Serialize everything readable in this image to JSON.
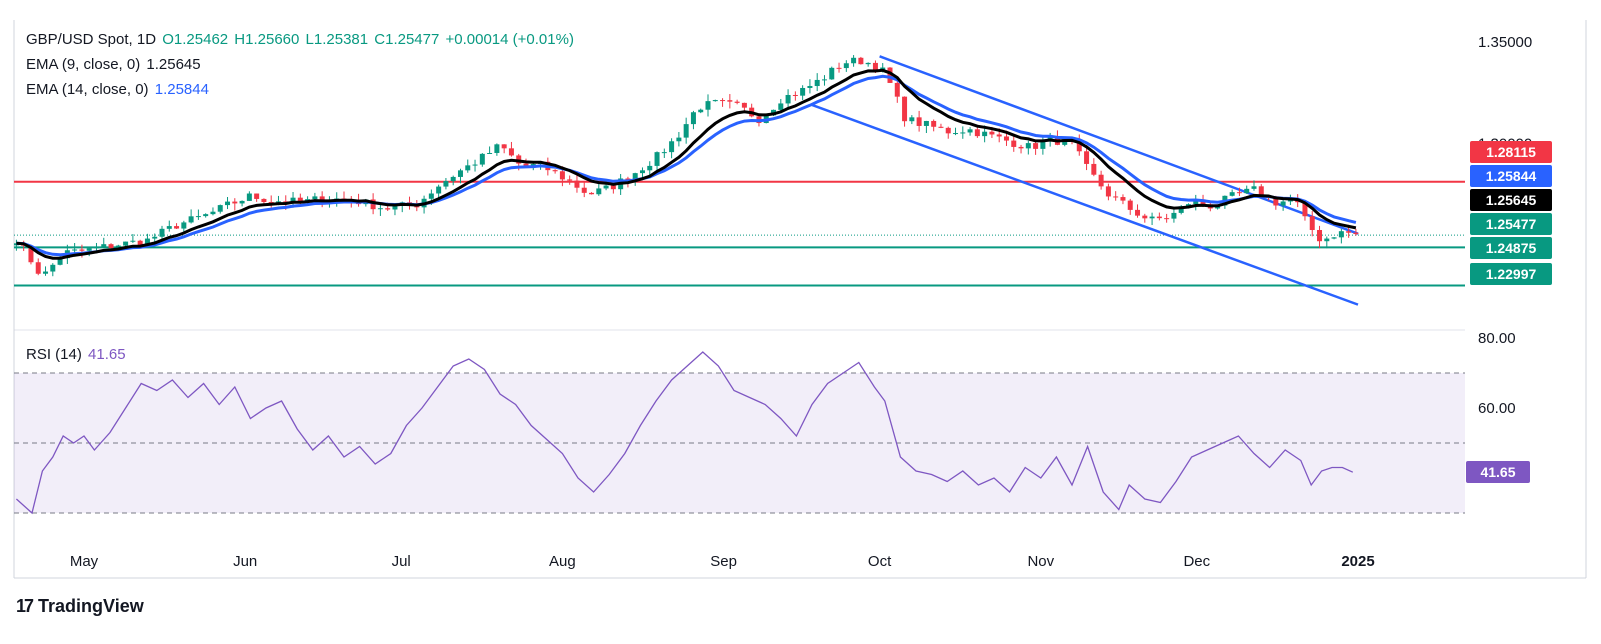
{
  "legend": {
    "symbol": "GBP/USD Spot, 1D",
    "open": "O1.25462",
    "high": "H1.25660",
    "low": "L1.25381",
    "close": "C1.25477",
    "change": "+0.00014 (+0.01%)",
    "ema9_label": "EMA (9, close, 0)",
    "ema9_value": "1.25645",
    "ema14_label": "EMA (14, close, 0)",
    "ema14_value": "1.25844",
    "rsi_label": "RSI (14)",
    "rsi_value": "41.65"
  },
  "branding": {
    "logo": "TradingView"
  },
  "colors": {
    "up": "#089981",
    "down": "#f23645",
    "ema9": "#000000",
    "ema14": "#2962ff",
    "resistance": "#f23645",
    "support": "#089981",
    "channel": "#2962ff",
    "rsi": "#7e57c2"
  },
  "chart_data": [
    {
      "type": "candlestick",
      "ylim": [
        1.207,
        1.355
      ],
      "price_ticks": [
        "1.35000",
        "1.30000"
      ],
      "x_ticks": [
        {
          "label": "May",
          "day": 0
        },
        {
          "label": "Jun",
          "day": 31
        },
        {
          "label": "Jul",
          "day": 61
        },
        {
          "label": "Aug",
          "day": 92
        },
        {
          "label": "Sep",
          "day": 123
        },
        {
          "label": "Oct",
          "day": 153
        },
        {
          "label": "Nov",
          "day": 184
        },
        {
          "label": "Dec",
          "day": 214
        },
        {
          "label": "2025",
          "day": 245
        }
      ],
      "price_labels": [
        {
          "value": "1.28115",
          "color": "#f23645"
        },
        {
          "value": "1.25844",
          "color": "#2962ff"
        },
        {
          "value": "1.25645",
          "color": "#000000"
        },
        {
          "value": "1.25477",
          "color": "#089981"
        },
        {
          "value": "1.24875",
          "color": "#089981"
        },
        {
          "value": "1.22997",
          "color": "#089981"
        }
      ],
      "horizontal_levels": {
        "resistance": 1.28115,
        "support1": 1.24875,
        "support2": 1.22997,
        "last_close": 1.25477
      },
      "ema9_last": 1.25645,
      "ema14_last": 1.25844,
      "channel": {
        "upper": [
          [
            153,
            1.343
          ],
          [
            245,
            1.2555
          ]
        ],
        "lower": [
          [
            140,
            1.319
          ],
          [
            245,
            1.2205
          ]
        ]
      },
      "close_path": [
        [
          -13,
          1.253
        ],
        [
          -8,
          1.234
        ],
        [
          -4,
          1.246
        ],
        [
          0,
          1.247
        ],
        [
          6,
          1.25
        ],
        [
          12,
          1.252
        ],
        [
          18,
          1.26
        ],
        [
          24,
          1.265
        ],
        [
          28,
          1.27
        ],
        [
          32,
          1.274
        ],
        [
          36,
          1.272
        ],
        [
          42,
          1.271
        ],
        [
          46,
          1.273
        ],
        [
          52,
          1.272
        ],
        [
          58,
          1.268
        ],
        [
          64,
          1.27
        ],
        [
          68,
          1.279
        ],
        [
          72,
          1.286
        ],
        [
          76,
          1.292
        ],
        [
          80,
          1.299
        ],
        [
          84,
          1.289
        ],
        [
          88,
          1.289
        ],
        [
          93,
          1.282
        ],
        [
          97,
          1.275
        ],
        [
          101,
          1.278
        ],
        [
          105,
          1.284
        ],
        [
          110,
          1.293
        ],
        [
          114,
          1.303
        ],
        [
          118,
          1.318
        ],
        [
          122,
          1.32
        ],
        [
          126,
          1.318
        ],
        [
          130,
          1.312
        ],
        [
          134,
          1.322
        ],
        [
          138,
          1.326
        ],
        [
          142,
          1.332
        ],
        [
          146,
          1.34
        ],
        [
          150,
          1.341
        ],
        [
          154,
          1.335
        ],
        [
          158,
          1.312
        ],
        [
          162,
          1.309
        ],
        [
          166,
          1.306
        ],
        [
          170,
          1.307
        ],
        [
          174,
          1.304
        ],
        [
          178,
          1.301
        ],
        [
          182,
          1.298
        ],
        [
          186,
          1.302
        ],
        [
          190,
          1.3
        ],
        [
          193,
          1.287
        ],
        [
          197,
          1.275
        ],
        [
          201,
          1.268
        ],
        [
          205,
          1.262
        ],
        [
          209,
          1.264
        ],
        [
          213,
          1.272
        ],
        [
          217,
          1.269
        ],
        [
          221,
          1.274
        ],
        [
          225,
          1.277
        ],
        [
          229,
          1.271
        ],
        [
          233,
          1.272
        ],
        [
          235,
          1.261
        ],
        [
          238,
          1.252
        ],
        [
          241,
          1.256
        ],
        [
          243,
          1.256
        ],
        [
          245,
          1.2548
        ]
      ]
    },
    {
      "type": "line",
      "ylim": [
        20,
        80
      ],
      "y_ticks": [
        "80.00",
        "60.00"
      ],
      "levels": {
        "overbought": 70,
        "middle": 50,
        "oversold": 30
      },
      "last_value": 41.65,
      "values": [
        [
          -13,
          34
        ],
        [
          -10,
          30
        ],
        [
          -8,
          42
        ],
        [
          -6,
          46
        ],
        [
          -4,
          52
        ],
        [
          -2,
          50
        ],
        [
          0,
          52
        ],
        [
          2,
          48
        ],
        [
          5,
          53
        ],
        [
          8,
          60
        ],
        [
          11,
          67
        ],
        [
          14,
          65
        ],
        [
          17,
          68
        ],
        [
          20,
          63
        ],
        [
          23,
          67
        ],
        [
          26,
          61
        ],
        [
          29,
          66
        ],
        [
          32,
          57
        ],
        [
          35,
          60
        ],
        [
          38,
          62
        ],
        [
          41,
          54
        ],
        [
          44,
          48
        ],
        [
          47,
          52
        ],
        [
          50,
          46
        ],
        [
          53,
          49
        ],
        [
          56,
          44
        ],
        [
          59,
          47
        ],
        [
          62,
          55
        ],
        [
          65,
          60
        ],
        [
          68,
          66
        ],
        [
          71,
          72
        ],
        [
          74,
          74
        ],
        [
          77,
          71
        ],
        [
          80,
          64
        ],
        [
          83,
          61
        ],
        [
          86,
          55
        ],
        [
          89,
          51
        ],
        [
          92,
          47
        ],
        [
          95,
          40
        ],
        [
          98,
          36
        ],
        [
          101,
          41
        ],
        [
          104,
          47
        ],
        [
          107,
          55
        ],
        [
          110,
          62
        ],
        [
          113,
          68
        ],
        [
          116,
          72
        ],
        [
          119,
          76
        ],
        [
          122,
          72
        ],
        [
          125,
          65
        ],
        [
          128,
          63
        ],
        [
          131,
          61
        ],
        [
          134,
          57
        ],
        [
          137,
          52
        ],
        [
          140,
          61
        ],
        [
          143,
          67
        ],
        [
          146,
          70
        ],
        [
          149,
          73
        ],
        [
          152,
          66
        ],
        [
          154,
          62
        ],
        [
          157,
          46
        ],
        [
          160,
          42
        ],
        [
          163,
          41
        ],
        [
          166,
          39
        ],
        [
          169,
          42
        ],
        [
          172,
          38
        ],
        [
          175,
          40
        ],
        [
          178,
          36
        ],
        [
          181,
          43
        ],
        [
          184,
          40
        ],
        [
          187,
          46
        ],
        [
          190,
          38
        ],
        [
          193,
          49
        ],
        [
          196,
          36
        ],
        [
          199,
          31
        ],
        [
          201,
          38
        ],
        [
          204,
          34
        ],
        [
          207,
          33
        ],
        [
          210,
          39
        ],
        [
          213,
          46
        ],
        [
          216,
          48
        ],
        [
          219,
          50
        ],
        [
          222,
          52
        ],
        [
          225,
          47
        ],
        [
          228,
          43
        ],
        [
          231,
          48
        ],
        [
          234,
          45
        ],
        [
          236,
          38
        ],
        [
          238,
          42
        ],
        [
          240,
          43
        ],
        [
          242,
          43
        ],
        [
          244,
          41.65
        ]
      ]
    }
  ]
}
